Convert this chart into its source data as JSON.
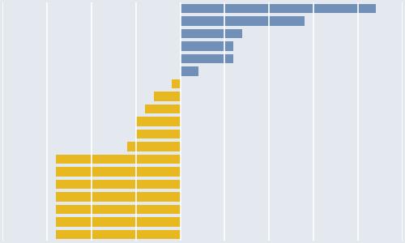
{
  "values": [
    22,
    14,
    7,
    6,
    6,
    2,
    -1,
    -3,
    -4,
    -5,
    -5,
    -6,
    -14,
    -14,
    -14,
    -14,
    -14,
    -14,
    -14
  ],
  "colors": [
    "#7090B8",
    "#7090B8",
    "#7090B8",
    "#7090B8",
    "#7090B8",
    "#7090B8",
    "#E8B820",
    "#E8B820",
    "#E8B820",
    "#E8B820",
    "#E8B820",
    "#E8B820",
    "#E8B820",
    "#E8B820",
    "#E8B820",
    "#E8B820",
    "#E8B820",
    "#E8B820",
    "#E8B820"
  ],
  "background_color": "#E4E9F0",
  "grid_color": "#FFFFFF",
  "xlim": [
    -20,
    25
  ],
  "bar_height": 0.72,
  "figsize": [
    5.0,
    3.0
  ],
  "dpi": 100
}
